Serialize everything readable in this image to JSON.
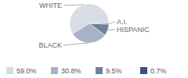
{
  "chart_data": {
    "type": "pie",
    "categories": [
      "WHITE",
      "BLACK",
      "HISPANIC",
      "A.I."
    ],
    "values": [
      59.0,
      30.8,
      9.5,
      0.7
    ],
    "value_labels": [
      "59.0%",
      "30.8%",
      "9.5%",
      "0.7%"
    ],
    "colors": [
      "#d8dce4",
      "#a8b2c3",
      "#6e829f",
      "#3b5478"
    ],
    "legend": "bottom"
  }
}
